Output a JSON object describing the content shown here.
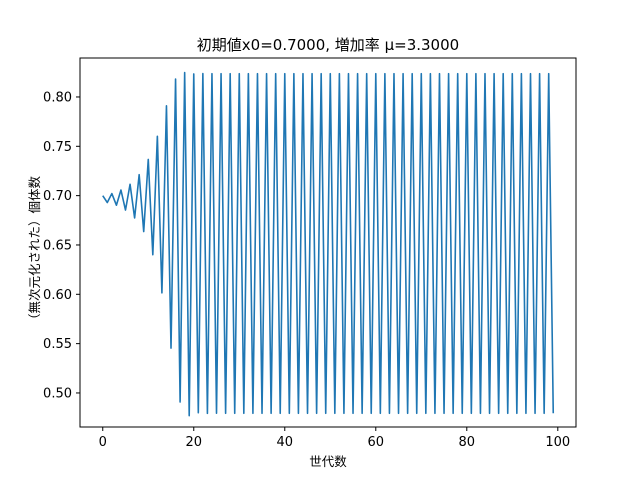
{
  "chart_data": {
    "type": "line",
    "title": "初期値x0=0.7000, 増加率 μ=3.3000",
    "xlabel": "世代数",
    "ylabel": "（無次元化された）個体数",
    "xlim": [
      -5,
      104
    ],
    "ylim": [
      0.4655,
      0.8395
    ],
    "xticks": [
      0,
      20,
      40,
      60,
      80,
      100
    ],
    "yticks": [
      0.5,
      0.55,
      0.6,
      0.65,
      0.7,
      0.75,
      0.8
    ],
    "ytick_labels": [
      "0.50",
      "0.55",
      "0.60",
      "0.65",
      "0.70",
      "0.75",
      "0.80"
    ],
    "grid": false,
    "legend": "none",
    "line_color": "#1f77b4",
    "logistic_map": {
      "x0": 0.7,
      "mu": 3.3,
      "generations": 100
    },
    "series": [
      {
        "x": [
          0,
          1,
          2,
          3,
          4,
          5,
          6,
          7,
          8,
          9,
          10,
          11,
          12,
          13,
          14,
          15,
          16,
          17,
          18,
          19,
          20,
          21,
          22,
          23,
          24,
          25,
          26,
          27,
          28,
          29,
          30,
          31,
          32,
          33,
          34,
          35,
          36,
          37,
          38,
          39,
          40,
          41,
          42,
          43,
          44,
          45,
          46,
          47,
          48,
          49,
          50,
          51,
          52,
          53,
          54,
          55,
          56,
          57,
          58,
          59,
          60,
          61,
          62,
          63,
          64,
          65,
          66,
          67,
          68,
          69,
          70,
          71,
          72,
          73,
          74,
          75,
          76,
          77,
          78,
          79,
          80,
          81,
          82,
          83,
          84,
          85,
          86,
          87,
          88,
          89,
          90,
          91,
          92,
          93,
          94,
          95,
          96,
          97,
          98,
          99
        ],
        "y": [
          0.7,
          0.693,
          0.7021,
          0.6903,
          0.7057,
          0.6854,
          0.7115,
          0.6774,
          0.7212,
          0.6636,
          0.7367,
          0.6401,
          0.7602,
          0.6015,
          0.791,
          0.5455,
          0.8182,
          0.4909,
          0.8247,
          0.477,
          0.8233,
          0.48,
          0.8237,
          0.4793,
          0.8236,
          0.4795,
          0.8236,
          0.4794,
          0.8236,
          0.4794,
          0.8236,
          0.4794,
          0.8236,
          0.4794,
          0.8236,
          0.4794,
          0.8236,
          0.4794,
          0.8236,
          0.4794,
          0.8236,
          0.4794,
          0.8236,
          0.4794,
          0.8236,
          0.4794,
          0.8236,
          0.4794,
          0.8236,
          0.4794,
          0.8236,
          0.4794,
          0.8236,
          0.4794,
          0.8236,
          0.4794,
          0.8236,
          0.4794,
          0.8236,
          0.4794,
          0.8236,
          0.4794,
          0.8236,
          0.4794,
          0.8236,
          0.4794,
          0.8236,
          0.4794,
          0.8236,
          0.4794,
          0.8236,
          0.4794,
          0.8236,
          0.4794,
          0.8236,
          0.4794,
          0.8236,
          0.4794,
          0.8236,
          0.4794,
          0.8236,
          0.4794,
          0.8236,
          0.4794,
          0.8236,
          0.4794,
          0.8236,
          0.4794,
          0.8236,
          0.4794,
          0.8236,
          0.4794,
          0.8236,
          0.4794,
          0.8236,
          0.4794,
          0.8236,
          0.4794,
          0.8236,
          0.4794
        ]
      }
    ]
  }
}
